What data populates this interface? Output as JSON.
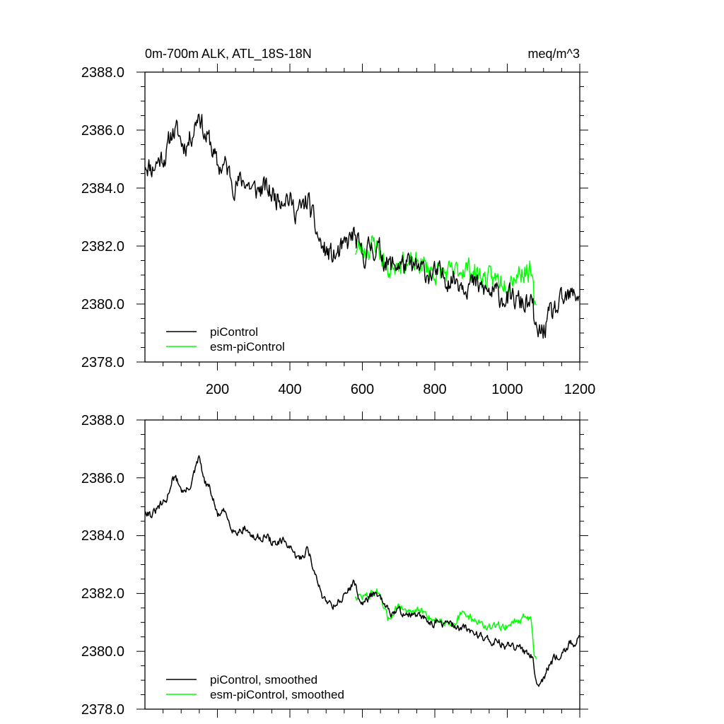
{
  "chart_data": [
    {
      "type": "line",
      "title": "0m-700m ALK, ATL_18S-18N",
      "units": "meq/m^3",
      "xlim": [
        0,
        1200
      ],
      "ylim": [
        2378.0,
        2388.0
      ],
      "x_ticks": [
        200,
        400,
        600,
        800,
        1000,
        1200
      ],
      "y_ticks": [
        "2388.0",
        "2386.0",
        "2384.0",
        "2382.0",
        "2380.0",
        "2378.0"
      ],
      "legend": [
        "piControl",
        "esm-piControl"
      ],
      "legend_position": "bottom-left",
      "series": [
        {
          "name": "piControl",
          "color": "#000000",
          "x_range": [
            1,
            1200
          ],
          "anchors": [
            [
              1,
              2384.9
            ],
            [
              20,
              2384.7
            ],
            [
              40,
              2385.0
            ],
            [
              60,
              2385.2
            ],
            [
              75,
              2386.0
            ],
            [
              90,
              2385.9
            ],
            [
              105,
              2385.5
            ],
            [
              120,
              2385.6
            ],
            [
              135,
              2386.1
            ],
            [
              150,
              2386.7
            ],
            [
              165,
              2385.8
            ],
            [
              180,
              2385.6
            ],
            [
              200,
              2384.7
            ],
            [
              220,
              2384.8
            ],
            [
              250,
              2384.1
            ],
            [
              275,
              2384.3
            ],
            [
              300,
              2383.9
            ],
            [
              330,
              2384.0
            ],
            [
              360,
              2383.7
            ],
            [
              390,
              2383.8
            ],
            [
              410,
              2383.3
            ],
            [
              430,
              2383.2
            ],
            [
              450,
              2383.6
            ],
            [
              470,
              2382.6
            ],
            [
              490,
              2381.9
            ],
            [
              520,
              2381.6
            ],
            [
              550,
              2381.9
            ],
            [
              575,
              2382.4
            ],
            [
              600,
              2381.6
            ],
            [
              625,
              2382.0
            ],
            [
              650,
              2381.8
            ],
            [
              675,
              2381.3
            ],
            [
              700,
              2381.4
            ],
            [
              750,
              2381.2
            ],
            [
              800,
              2381.0
            ],
            [
              850,
              2380.9
            ],
            [
              900,
              2380.7
            ],
            [
              950,
              2380.4
            ],
            [
              1000,
              2380.2
            ],
            [
              1050,
              2380.0
            ],
            [
              1070,
              2379.9
            ],
            [
              1080,
              2378.9
            ],
            [
              1100,
              2379.1
            ],
            [
              1120,
              2379.6
            ],
            [
              1150,
              2380.0
            ],
            [
              1170,
              2380.2
            ],
            [
              1200,
              2380.4
            ]
          ],
          "noise": 0.42,
          "seed": 11
        },
        {
          "name": "esm-piControl",
          "color": "#00ff00",
          "x_range": [
            580,
            1080
          ],
          "anchors": [
            [
              580,
              2381.9
            ],
            [
              610,
              2381.9
            ],
            [
              640,
              2382.1
            ],
            [
              670,
              2381.1
            ],
            [
              700,
              2381.6
            ],
            [
              730,
              2381.3
            ],
            [
              760,
              2381.4
            ],
            [
              800,
              2381.1
            ],
            [
              850,
              2381.0
            ],
            [
              880,
              2381.3
            ],
            [
              910,
              2381.1
            ],
            [
              950,
              2380.8
            ],
            [
              1000,
              2380.9
            ],
            [
              1050,
              2381.2
            ],
            [
              1065,
              2381.1
            ],
            [
              1075,
              2379.9
            ],
            [
              1080,
              2379.6
            ]
          ],
          "noise": 0.42,
          "seed": 23
        }
      ]
    },
    {
      "type": "line",
      "xlim": [
        0,
        1200
      ],
      "ylim": [
        2378.0,
        2388.0
      ],
      "y_ticks": [
        "2388.0",
        "2386.0",
        "2384.0",
        "2382.0",
        "2380.0",
        "2378.0"
      ],
      "legend": [
        "piControl, smoothed",
        "esm-piControl, smoothed"
      ],
      "legend_position": "bottom-left",
      "series": [
        {
          "name": "piControl, smoothed",
          "color": "#000000",
          "x_range": [
            1,
            1200
          ],
          "anchors": [
            [
              1,
              2384.9
            ],
            [
              20,
              2384.7
            ],
            [
              40,
              2385.0
            ],
            [
              60,
              2385.2
            ],
            [
              75,
              2386.0
            ],
            [
              90,
              2385.9
            ],
            [
              105,
              2385.5
            ],
            [
              120,
              2385.6
            ],
            [
              135,
              2386.1
            ],
            [
              150,
              2386.7
            ],
            [
              165,
              2385.8
            ],
            [
              180,
              2385.6
            ],
            [
              200,
              2384.7
            ],
            [
              220,
              2384.8
            ],
            [
              250,
              2384.1
            ],
            [
              275,
              2384.3
            ],
            [
              300,
              2383.9
            ],
            [
              330,
              2384.0
            ],
            [
              360,
              2383.7
            ],
            [
              390,
              2383.8
            ],
            [
              410,
              2383.3
            ],
            [
              430,
              2383.2
            ],
            [
              450,
              2383.6
            ],
            [
              470,
              2382.6
            ],
            [
              490,
              2381.9
            ],
            [
              520,
              2381.6
            ],
            [
              550,
              2381.9
            ],
            [
              575,
              2382.4
            ],
            [
              600,
              2381.6
            ],
            [
              625,
              2382.0
            ],
            [
              650,
              2381.8
            ],
            [
              675,
              2381.3
            ],
            [
              700,
              2381.4
            ],
            [
              750,
              2381.2
            ],
            [
              800,
              2381.0
            ],
            [
              850,
              2380.9
            ],
            [
              900,
              2380.7
            ],
            [
              950,
              2380.4
            ],
            [
              1000,
              2380.2
            ],
            [
              1050,
              2380.0
            ],
            [
              1070,
              2379.9
            ],
            [
              1080,
              2378.9
            ],
            [
              1100,
              2379.1
            ],
            [
              1120,
              2379.6
            ],
            [
              1150,
              2380.0
            ],
            [
              1170,
              2380.2
            ],
            [
              1200,
              2380.4
            ]
          ],
          "noise": 0.15,
          "seed": 31
        },
        {
          "name": "esm-piControl, smoothed",
          "color": "#00ff00",
          "x_range": [
            580,
            1080
          ],
          "anchors": [
            [
              580,
              2381.9
            ],
            [
              610,
              2381.9
            ],
            [
              640,
              2382.1
            ],
            [
              670,
              2381.1
            ],
            [
              700,
              2381.6
            ],
            [
              730,
              2381.3
            ],
            [
              760,
              2381.4
            ],
            [
              800,
              2381.1
            ],
            [
              850,
              2381.0
            ],
            [
              880,
              2381.3
            ],
            [
              910,
              2381.1
            ],
            [
              950,
              2380.8
            ],
            [
              1000,
              2380.9
            ],
            [
              1050,
              2381.2
            ],
            [
              1065,
              2381.1
            ],
            [
              1075,
              2379.9
            ],
            [
              1080,
              2379.6
            ]
          ],
          "noise": 0.15,
          "seed": 47
        }
      ]
    }
  ]
}
